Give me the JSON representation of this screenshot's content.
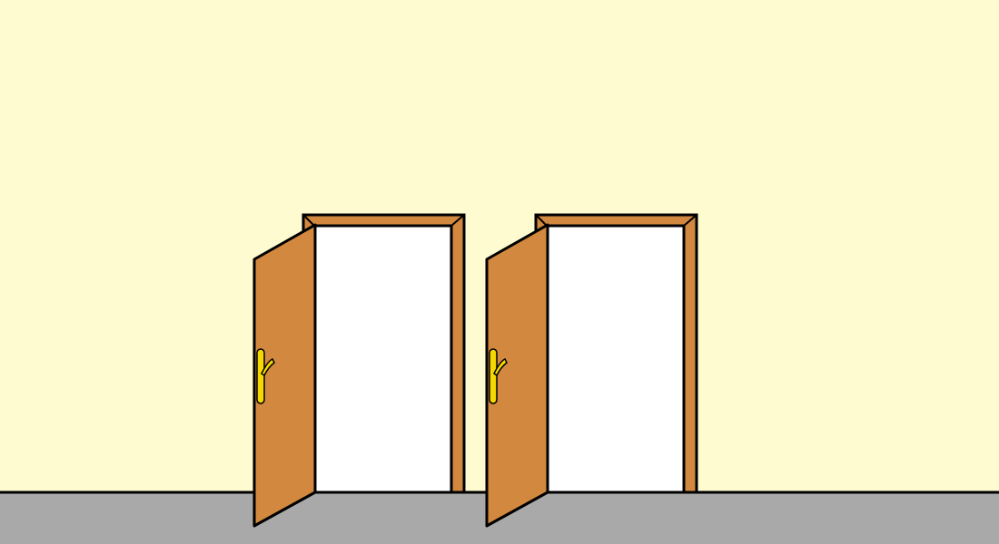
{
  "scene": {
    "wall_color": "#FFFBD0",
    "floor_color": "#A9A9A9",
    "outline_color": "#000000"
  },
  "doors": [
    {
      "state": "open",
      "frame_color": "#D2883E",
      "leaf_color": "#D2883E",
      "opening_color": "#FFFFFF",
      "handle_color": "#F5D800",
      "handle_icon": "door-handle-icon"
    },
    {
      "state": "open",
      "frame_color": "#D2883E",
      "leaf_color": "#D2883E",
      "opening_color": "#FFFFFF",
      "handle_color": "#F5D800",
      "handle_icon": "door-handle-icon"
    }
  ]
}
